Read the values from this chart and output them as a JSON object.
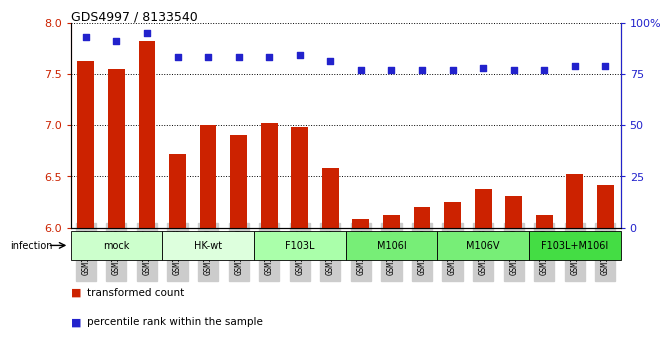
{
  "title": "GDS4997 / 8133540",
  "samples": [
    "GSM1172635",
    "GSM1172636",
    "GSM1172637",
    "GSM1172638",
    "GSM1172639",
    "GSM1172640",
    "GSM1172641",
    "GSM1172642",
    "GSM1172643",
    "GSM1172644",
    "GSM1172645",
    "GSM1172646",
    "GSM1172647",
    "GSM1172648",
    "GSM1172649",
    "GSM1172650",
    "GSM1172651",
    "GSM1172652"
  ],
  "bar_values": [
    7.62,
    7.55,
    7.82,
    6.72,
    7.0,
    6.9,
    7.02,
    6.98,
    6.58,
    6.08,
    6.12,
    6.2,
    6.25,
    6.38,
    6.31,
    6.12,
    6.52,
    6.42
  ],
  "percentile_values": [
    93,
    91,
    95,
    83,
    83,
    83,
    83,
    84,
    81,
    77,
    77,
    77,
    77,
    78,
    77,
    77,
    79,
    79
  ],
  "ylim_left": [
    6.0,
    8.0
  ],
  "ylim_right": [
    0,
    100
  ],
  "yticks_left": [
    6.0,
    6.5,
    7.0,
    7.5,
    8.0
  ],
  "yticks_right": [
    0,
    25,
    50,
    75,
    100
  ],
  "ytick_labels_right": [
    "0",
    "25",
    "50",
    "75",
    "100%"
  ],
  "bar_color": "#cc2200",
  "dot_color": "#2222cc",
  "bar_width": 0.55,
  "groups": [
    {
      "label": "mock",
      "start": 0,
      "end": 2,
      "color": "#ccffcc"
    },
    {
      "label": "HK-wt",
      "start": 3,
      "end": 5,
      "color": "#ddffdd"
    },
    {
      "label": "F103L",
      "start": 6,
      "end": 8,
      "color": "#aaffaa"
    },
    {
      "label": "M106I",
      "start": 9,
      "end": 11,
      "color": "#77ee77"
    },
    {
      "label": "M106V",
      "start": 12,
      "end": 14,
      "color": "#77ee77"
    },
    {
      "label": "F103L+M106I",
      "start": 15,
      "end": 17,
      "color": "#44dd44"
    }
  ],
  "legend_bar_label": "transformed count",
  "legend_dot_label": "percentile rank within the sample",
  "infection_label": "infection"
}
